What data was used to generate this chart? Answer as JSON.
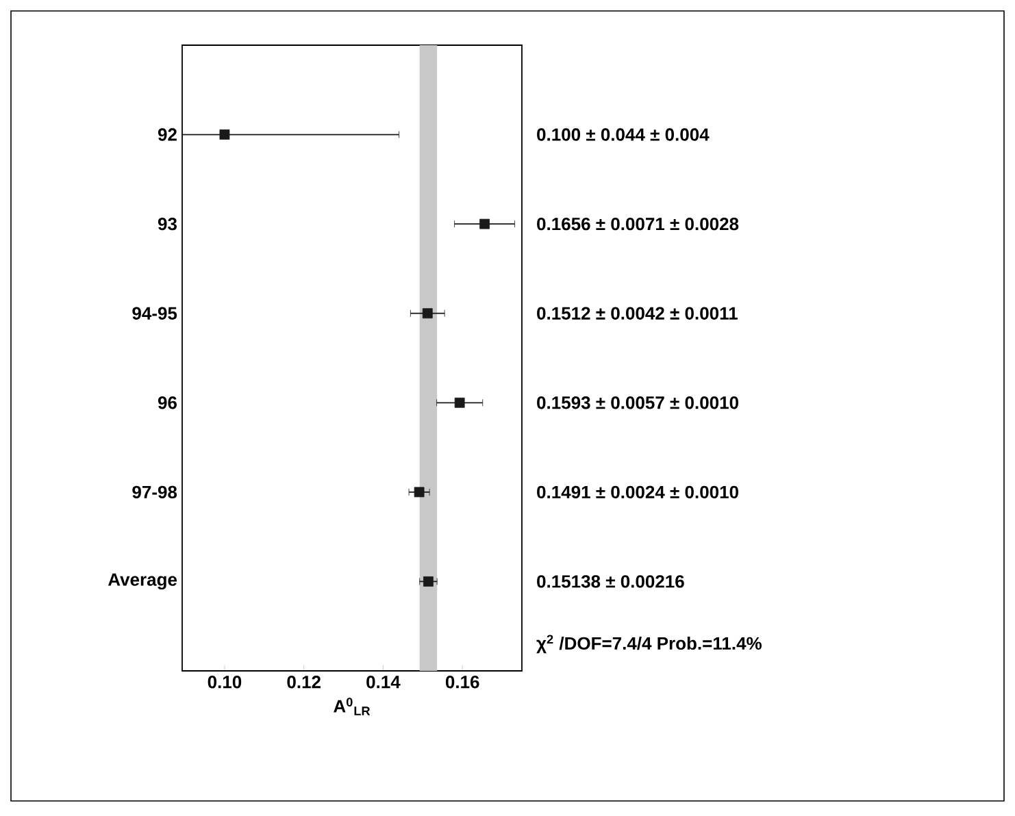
{
  "chart_data": {
    "type": "scatter",
    "orientation": "horizontal",
    "xlabel": "A$^{0}$$_{LR}$",
    "categories": [
      "92",
      "93",
      "94-95",
      "96",
      "97-98",
      "Average"
    ],
    "series": [
      {
        "color": "#1a1a1a",
        "values": [
          0.1,
          0.1656,
          0.1512,
          0.1593,
          0.1491,
          0.1514
        ],
        "errors": [
          [
            0.0893,
            0.144
          ],
          0.0076,
          0.0043,
          0.0058,
          0.0026,
          0.0022
        ]
      }
    ],
    "xlim": [
      0.0893,
      0.175
    ],
    "xticks": [
      {
        "value": 0.1,
        "label": "0.10"
      },
      0.12,
      0.14,
      0.16
    ],
    "bands": [
      {
        "axis": "x",
        "from": 0.1492,
        "to": 0.1536,
        "color": "#c8c8c8"
      }
    ],
    "marker": "square",
    "annotations": [
      "0.100 ± 0.044 ± 0.004",
      "0.1656 ± 0.0071 ± 0.0028",
      "0.1512 ± 0.0042 ± 0.0011",
      "0.1593 ± 0.0057 ± 0.0010",
      "0.1491 ± 0.0024 ± 0.0010",
      "0.15138 ± 0.00216",
      "χ$^{2}$ /DOF=7.4/4  Prob.=11.4%"
    ]
  }
}
